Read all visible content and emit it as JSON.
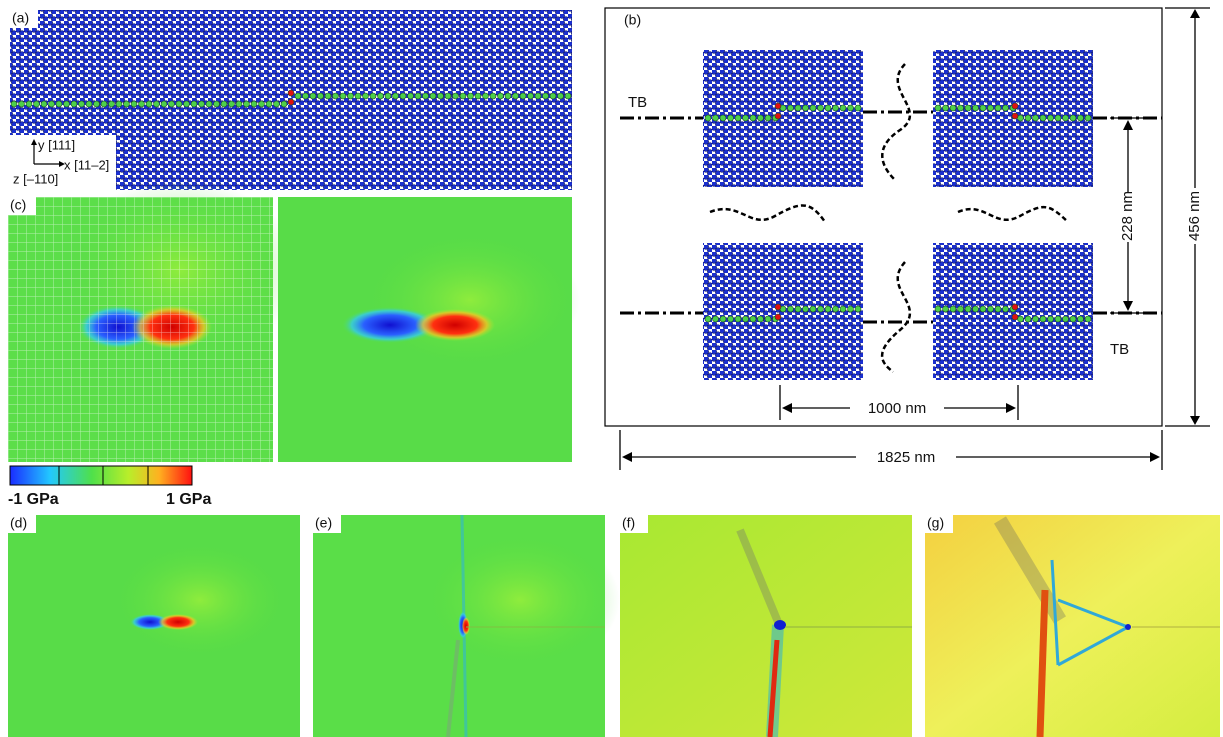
{
  "panels": [
    "(a)",
    "(b)",
    "(c)",
    "(d)",
    "(e)",
    "(f)",
    "(g)"
  ],
  "panel_a": {
    "y_axis": "y [111]",
    "x_axis": "x [11–2]",
    "z_axis": "z [–110]"
  },
  "panel_b": {
    "tb_labels": [
      "TB",
      "TB"
    ],
    "dimensions": {
      "half_height": "228 nm",
      "height": "456 nm",
      "spacing": "1000 nm",
      "width": "1825 nm"
    }
  },
  "colorbar": {
    "min_label": "-1 GPa",
    "max_label": "1 GPa"
  }
}
